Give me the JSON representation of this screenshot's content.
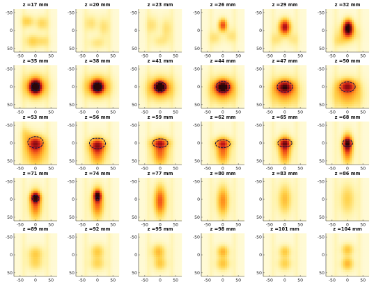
{
  "chart_data": {
    "type": "heatmap",
    "layout": {
      "rows": 5,
      "cols": 6
    },
    "title_prefix": "z =",
    "title_unit": "mm",
    "x_ticks": [
      -50,
      0,
      50
    ],
    "y_ticks": [
      -50,
      0,
      50
    ],
    "xlim": [
      -70,
      70
    ],
    "ylim": [
      -60,
      60
    ],
    "y_reversed": true,
    "colormap": [
      "#fffff6",
      "#fff2a6",
      "#ffd24a",
      "#ff9a1e",
      "#f2561a",
      "#c31818",
      "#7e0b10",
      "#2a0508"
    ],
    "contour_color": "#1a1646",
    "panels": [
      {
        "z": 17,
        "label": "z =17 mm"
      },
      {
        "z": 20,
        "label": "z =20 mm"
      },
      {
        "z": 23,
        "label": "z =23 mm"
      },
      {
        "z": 26,
        "label": "z =26 mm"
      },
      {
        "z": 29,
        "label": "z =29 mm"
      },
      {
        "z": 32,
        "label": "z =32 mm"
      },
      {
        "z": 35,
        "label": "z =35 mm"
      },
      {
        "z": 38,
        "label": "z =38 mm"
      },
      {
        "z": 41,
        "label": "z =41 mm"
      },
      {
        "z": 44,
        "label": "z =44 mm"
      },
      {
        "z": 47,
        "label": "z =47 mm"
      },
      {
        "z": 50,
        "label": "z =50 mm"
      },
      {
        "z": 53,
        "label": "z =53 mm"
      },
      {
        "z": 56,
        "label": "z =56 mm"
      },
      {
        "z": 59,
        "label": "z =59 mm"
      },
      {
        "z": 62,
        "label": "z =62 mm"
      },
      {
        "z": 65,
        "label": "z =65 mm"
      },
      {
        "z": 68,
        "label": "z =68 mm"
      },
      {
        "z": 71,
        "label": "z =71 mm"
      },
      {
        "z": 74,
        "label": "z =74 mm"
      },
      {
        "z": 77,
        "label": "z =77 mm"
      },
      {
        "z": 80,
        "label": "z =80 mm"
      },
      {
        "z": 83,
        "label": "z =83 mm"
      },
      {
        "z": 86,
        "label": "z =86 mm"
      },
      {
        "z": 89,
        "label": "z =89 mm"
      },
      {
        "z": 92,
        "label": "z =92 mm"
      },
      {
        "z": 95,
        "label": "z =95 mm"
      },
      {
        "z": 98,
        "label": "z =98 mm"
      },
      {
        "z": 101,
        "label": "z =101 mm"
      },
      {
        "z": 104,
        "label": "z =104 mm"
      }
    ]
  }
}
